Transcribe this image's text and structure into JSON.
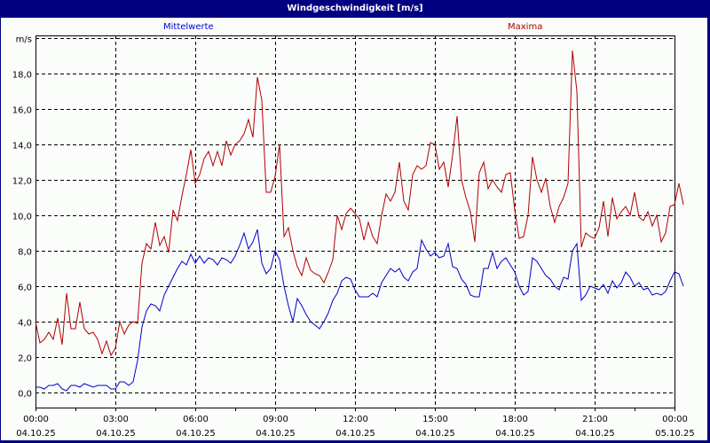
{
  "window": {
    "title": "Windgeschwindigkeit [m/s]"
  },
  "legend": {
    "mean_label": "Mittelwerte",
    "max_label": "Maxima"
  },
  "colors": {
    "title_bar": "#000080",
    "background": "#fbfdfb",
    "mean_series": "#0000cc",
    "max_series": "#b00000",
    "grid": "#000000"
  },
  "chart_data": {
    "type": "line",
    "title": "Windgeschwindigkeit [m/s]",
    "xlabel": "",
    "ylabel": "m/s",
    "ylim": [
      -0.8,
      20.0
    ],
    "grid": true,
    "legend_position": "top",
    "y_ticks": [
      "0,0",
      "2,0",
      "4,0",
      "6,0",
      "8,0",
      "10,0",
      "12,0",
      "14,0",
      "16,0",
      "18,0",
      "m/s"
    ],
    "x_ticks": [
      {
        "time": "00:00",
        "date": "04.10.25"
      },
      {
        "time": "03:00",
        "date": "04.10.25"
      },
      {
        "time": "06:00",
        "date": "04.10.25"
      },
      {
        "time": "09:00",
        "date": "04.10.25"
      },
      {
        "time": "12:00",
        "date": "04.10.25"
      },
      {
        "time": "15:00",
        "date": "04.10.25"
      },
      {
        "time": "18:00",
        "date": "04.10.25"
      },
      {
        "time": "21:00",
        "date": "04.10.25"
      },
      {
        "time": "00:00",
        "date": "05.10.25"
      }
    ],
    "x_interval_minutes": 10,
    "series": [
      {
        "name": "Mittelwerte",
        "color": "#0000cc",
        "values": [
          0.3,
          0.3,
          0.2,
          0.4,
          0.4,
          0.5,
          0.2,
          0.1,
          0.4,
          0.4,
          0.3,
          0.5,
          0.4,
          0.3,
          0.4,
          0.4,
          0.4,
          0.2,
          0.2,
          0.6,
          0.6,
          0.4,
          0.6,
          1.8,
          3.7,
          4.6,
          5.0,
          4.9,
          4.6,
          5.5,
          6.0,
          6.5,
          7.0,
          7.4,
          7.2,
          7.8,
          7.3,
          7.7,
          7.3,
          7.6,
          7.5,
          7.2,
          7.6,
          7.5,
          7.3,
          7.7,
          8.3,
          9.0,
          8.1,
          8.5,
          9.2,
          7.3,
          6.7,
          7.0,
          8.0,
          7.5,
          6.0,
          4.9,
          4.0,
          5.3,
          4.9,
          4.4,
          4.0,
          3.8,
          3.6,
          4.0,
          4.5,
          5.2,
          5.6,
          6.3,
          6.5,
          6.4,
          5.8,
          5.4,
          5.4,
          5.4,
          5.6,
          5.4,
          6.2,
          6.6,
          7.0,
          6.8,
          7.0,
          6.5,
          6.3,
          6.8,
          7.0,
          8.6,
          8.1,
          7.7,
          7.9,
          7.6,
          7.7,
          8.4,
          7.1,
          7.0,
          6.4,
          6.1,
          5.5,
          5.4,
          5.4,
          7.0,
          7.0,
          7.9,
          7.0,
          7.4,
          7.6,
          7.2,
          6.8,
          6.0,
          5.5,
          5.7,
          7.6,
          7.4,
          7.0,
          6.6,
          6.4,
          6.0,
          5.8,
          6.5,
          6.4,
          8.0,
          8.4,
          5.2,
          5.5,
          6.0,
          5.9,
          5.8,
          6.1,
          5.6,
          6.3,
          5.9,
          6.2,
          6.8,
          6.5,
          6.0,
          6.2,
          5.8,
          5.9,
          5.5,
          5.6,
          5.5,
          5.7,
          6.3,
          6.8,
          6.7,
          6.0
        ]
      },
      {
        "name": "Maxima",
        "color": "#b00000",
        "values": [
          4.0,
          2.8,
          3.0,
          3.4,
          3.0,
          4.2,
          2.7,
          5.6,
          3.6,
          3.6,
          5.1,
          3.6,
          3.3,
          3.4,
          3.0,
          2.2,
          2.9,
          2.1,
          2.5,
          4.0,
          3.3,
          3.8,
          4.0,
          3.9,
          7.3,
          8.4,
          8.1,
          9.6,
          8.3,
          8.8,
          7.9,
          10.3,
          9.7,
          11.1,
          12.3,
          13.7,
          11.8,
          12.3,
          13.2,
          13.6,
          12.8,
          13.6,
          12.8,
          14.2,
          13.4,
          14.0,
          14.2,
          14.6,
          15.4,
          14.4,
          17.8,
          16.5,
          11.3,
          11.3,
          12.2,
          14.0,
          8.8,
          9.3,
          8.0,
          7.1,
          6.6,
          7.6,
          6.9,
          6.7,
          6.6,
          6.2,
          6.8,
          7.5,
          10.0,
          9.2,
          10.1,
          10.4,
          10.1,
          9.8,
          8.6,
          9.6,
          8.8,
          8.4,
          10.0,
          11.2,
          10.8,
          11.3,
          13.0,
          10.8,
          10.3,
          12.3,
          12.8,
          12.6,
          12.8,
          14.1,
          14.0,
          12.6,
          13.0,
          11.6,
          13.4,
          15.6,
          12.0,
          11.0,
          10.2,
          8.5,
          12.4,
          13.0,
          11.5,
          12.0,
          11.6,
          11.3,
          12.3,
          12.4,
          10.3,
          8.7,
          8.8,
          10.0,
          13.3,
          12.0,
          11.3,
          12.1,
          10.5,
          9.6,
          10.5,
          11.0,
          11.8,
          19.3,
          17.0,
          8.2,
          9.0,
          8.8,
          8.7,
          9.3,
          10.8,
          8.8,
          11.0,
          9.8,
          10.2,
          10.5,
          10.0,
          11.3,
          9.9,
          9.7,
          10.2,
          9.4,
          10.0,
          8.5,
          9.0,
          10.5,
          10.6,
          11.8,
          10.6
        ]
      }
    ]
  }
}
